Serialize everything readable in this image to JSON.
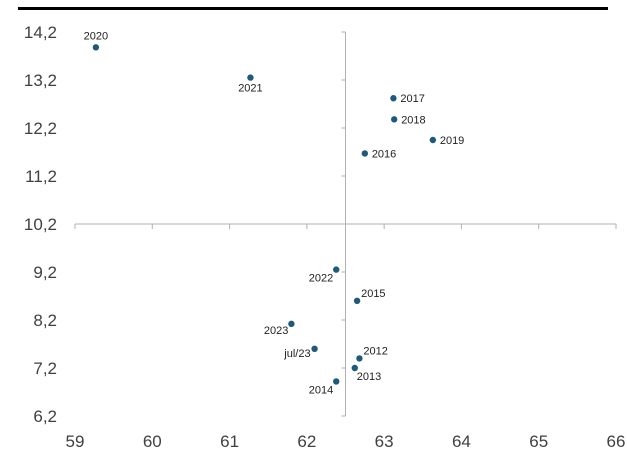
{
  "chart_data": {
    "type": "scatter",
    "title": "",
    "xlabel": "",
    "ylabel": "",
    "xlim": [
      59,
      66
    ],
    "ylim": [
      6.2,
      14.2
    ],
    "x_ticks": [
      "59",
      "60",
      "61",
      "62",
      "63",
      "64",
      "65",
      "66"
    ],
    "y_ticks": [
      "6,2",
      "7,2",
      "8,2",
      "9,2",
      "10,2",
      "11,2",
      "12,2",
      "13,2",
      "14,2"
    ],
    "x_cross": 62.5,
    "y_cross": 10.2,
    "grid": false,
    "marker_color": "#1f5a7a",
    "points": [
      {
        "label": "2020",
        "x": 59.27,
        "y": 13.88
      },
      {
        "label": "2021",
        "x": 61.27,
        "y": 13.25
      },
      {
        "label": "2017",
        "x": 63.12,
        "y": 12.82
      },
      {
        "label": "2018",
        "x": 63.13,
        "y": 12.38
      },
      {
        "label": "2019",
        "x": 63.63,
        "y": 11.95
      },
      {
        "label": "2016",
        "x": 62.75,
        "y": 11.67
      },
      {
        "label": "2022",
        "x": 62.38,
        "y": 9.25
      },
      {
        "label": "2015",
        "x": 62.65,
        "y": 8.6
      },
      {
        "label": "2023",
        "x": 61.8,
        "y": 8.12
      },
      {
        "label": "jul/23",
        "x": 62.1,
        "y": 7.6
      },
      {
        "label": "2012",
        "x": 62.68,
        "y": 7.4
      },
      {
        "label": "2013",
        "x": 62.62,
        "y": 7.2
      },
      {
        "label": "2014",
        "x": 62.38,
        "y": 6.92
      }
    ]
  }
}
